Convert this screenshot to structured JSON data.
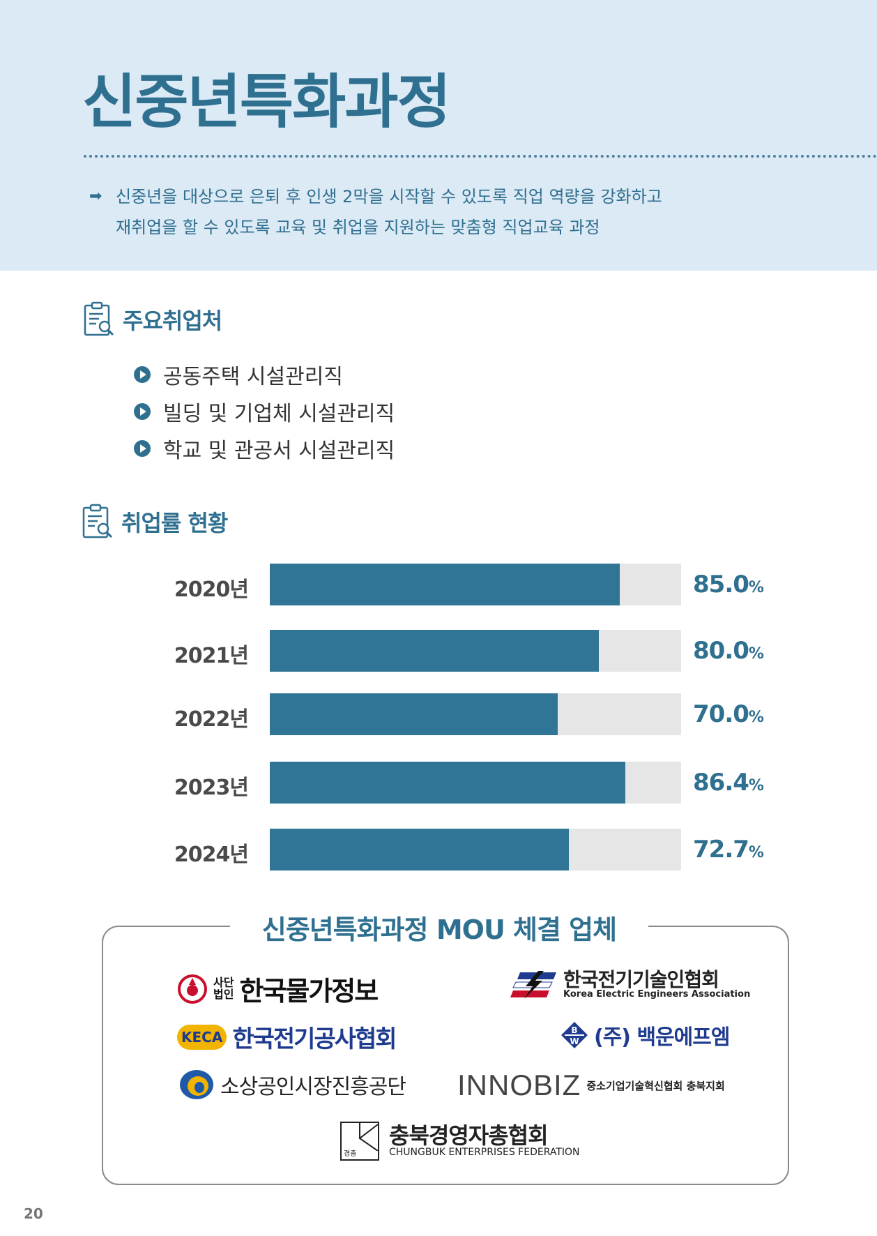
{
  "header": {
    "title": "신중년특화과정",
    "intro_line1": "신중년을 대상으로 은퇴 후  인생 2막을 시작할 수 있도록 직업 역량을 강화하고",
    "intro_line2": "재취업을 할 수 있도록 교육 및 취업을 지원하는 맞춤형 직업교육 과정"
  },
  "employment": {
    "heading": "주요취업처",
    "items": [
      {
        "label": "공동주택 시설관리직"
      },
      {
        "label": "빌딩 및 기업체 시설관리직"
      },
      {
        "label": "학교 및 관공서 시설관리직"
      }
    ]
  },
  "rate": {
    "heading": "취업률 현황",
    "pct_unit": "%"
  },
  "chart_data": {
    "type": "bar",
    "orientation": "horizontal",
    "categories": [
      "2020년",
      "2021년",
      "2022년",
      "2023년",
      "2024년"
    ],
    "values": [
      85.0,
      80.0,
      70.0,
      86.4,
      72.7
    ],
    "value_labels": [
      "85.0",
      "80.0",
      "70.0",
      "86.4",
      "72.7"
    ],
    "unit": "%",
    "xlim": [
      0,
      100
    ],
    "colors": {
      "fill": "#317596",
      "track": "#e6e6e6",
      "value_text": "#2f6f8f"
    }
  },
  "mou": {
    "title": "신중년특화과정 MOU 체결 업체",
    "logos": {
      "kpi_prefix_top": "사단",
      "kpi_prefix_bottom": "법인",
      "kpi_name": "한국물가정보",
      "keea_name": "한국전기기술인협회",
      "keea_sub": "Korea Electric Engineers Association",
      "keca_mark": "KECA",
      "keca_name": "한국전기공사협회",
      "baekwoon_name": "(주) 백운에프엠",
      "semas_name": "소상공인시장진흥공단",
      "innobiz_mark": "INNOBIZ",
      "innobiz_name": "중소기업기술혁신협회 충북지회",
      "cbef_mark": "경총",
      "cbef_name": "충북경영자총협회",
      "cbef_sub": "CHUNGBUK ENTERPRISES FEDERATION"
    }
  },
  "page": {
    "number": "20"
  },
  "colors": {
    "accent": "#2f7090",
    "band": "#dceaf5"
  }
}
